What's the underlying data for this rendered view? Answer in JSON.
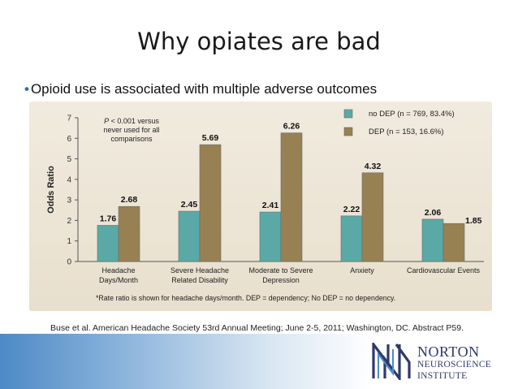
{
  "slide": {
    "title": "Why opiates are bad",
    "bullet": "Opioid use is associated with multiple adverse outcomes",
    "citation": "Buse et al. American Headache Society 53rd Annual Meeting; June 2-5, 2011; Washington, DC. Abstract P59."
  },
  "logo": {
    "line1": "NORTON",
    "line2": "NEUROSCIENCE",
    "line3": "INSTITUTE"
  },
  "colors": {
    "no_dep": "#5aa9a6",
    "dep": "#978152",
    "axis": "#555555"
  },
  "chart_data": {
    "type": "bar",
    "ylabel": "Odds Ratio",
    "ylim": [
      0,
      7
    ],
    "yticks": [
      "0",
      "1",
      "2",
      "3",
      "4",
      "5",
      "6",
      "7"
    ],
    "categories": [
      [
        "Headache",
        "Days/Month"
      ],
      [
        "Severe Headache",
        "Related Disability"
      ],
      [
        "Moderate to Severe",
        "Depression"
      ],
      [
        "Anxiety"
      ],
      [
        "Cardiovascular Events"
      ]
    ],
    "series": [
      {
        "name": "no DEP (n = 769, 83.4%)",
        "values": [
          1.76,
          2.45,
          2.41,
          2.22,
          2.06
        ],
        "labels": [
          "1.76",
          "2.45",
          "2.41",
          "2.22",
          "2.06"
        ]
      },
      {
        "name": "DEP (n = 153, 16.6%)",
        "values": [
          2.68,
          5.69,
          6.26,
          4.32,
          1.85
        ],
        "labels": [
          "2.68",
          "5.69",
          "6.26",
          "4.32",
          "1.85"
        ]
      }
    ],
    "annotation": [
      "P < 0.001 versus",
      "never used for all",
      "comparisons"
    ],
    "footnote": "*Rate ratio is shown for headache days/month. DEP = dependency; No DEP = no dependency.",
    "legend_position": "top-right",
    "grid": false
  }
}
